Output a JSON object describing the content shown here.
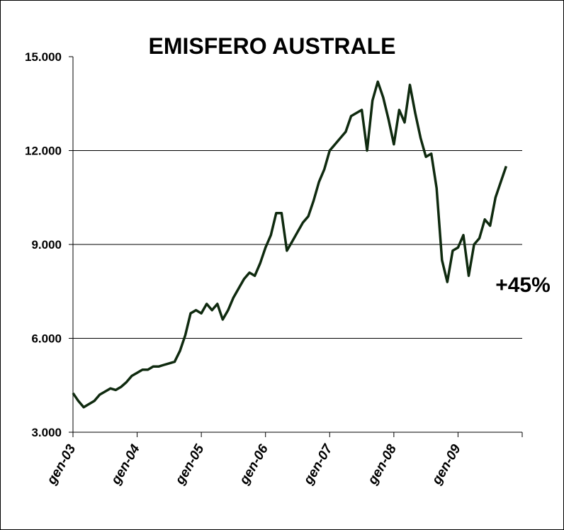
{
  "chart_data": {
    "type": "line",
    "title": "EMISFERO AUSTRALE",
    "annotation": "+45%",
    "categories": [
      "gen-03",
      null,
      null,
      null,
      null,
      null,
      null,
      null,
      null,
      null,
      null,
      null,
      "gen-04",
      null,
      null,
      null,
      null,
      null,
      null,
      null,
      null,
      null,
      null,
      null,
      "gen-05",
      null,
      null,
      null,
      null,
      null,
      null,
      null,
      null,
      null,
      null,
      null,
      "gen-06",
      null,
      null,
      null,
      null,
      null,
      null,
      null,
      null,
      null,
      null,
      null,
      "gen-07",
      null,
      null,
      null,
      null,
      null,
      null,
      null,
      null,
      null,
      null,
      null,
      "gen-08",
      null,
      null,
      null,
      null,
      null,
      null,
      null,
      null,
      null,
      null,
      null,
      "gen-09",
      null,
      null,
      null,
      null,
      null,
      null,
      null,
      null,
      null,
      null,
      null
    ],
    "series": [
      {
        "color": "#0f2a0f",
        "values": [
          4250,
          4000,
          3800,
          3900,
          4000,
          4200,
          4300,
          4400,
          4350,
          4450,
          4600,
          4800,
          4900,
          5000,
          5000,
          5100,
          5100,
          5150,
          5200,
          5250,
          5600,
          6100,
          6800,
          6900,
          6800,
          7100,
          6900,
          7100,
          6600,
          6900,
          7300,
          7600,
          7900,
          8100,
          8000,
          8400,
          8900,
          9300,
          10000,
          10000,
          8800,
          9100,
          9400,
          9700,
          9900,
          10400,
          11000,
          11400,
          12000,
          12200,
          12400,
          12600,
          13100,
          13200,
          13300,
          12000,
          13600,
          14200,
          13700,
          13000,
          12200,
          13300,
          12900,
          14100,
          13200,
          12400,
          11800,
          11900,
          10800,
          8500,
          7800,
          8800,
          8900,
          9300,
          8000,
          9000,
          9200,
          9800,
          9600,
          10500,
          11000,
          11500,
          null,
          null
        ]
      }
    ],
    "ylim": [
      3000,
      15000
    ],
    "yticks": [
      {
        "value": 3000,
        "label": "3.000"
      },
      {
        "value": 6000,
        "label": "6.000"
      },
      {
        "value": 9000,
        "label": "9.000"
      },
      {
        "value": 12000,
        "label": "12.000"
      },
      {
        "value": 15000,
        "label": "15.000"
      }
    ],
    "grid": true
  }
}
